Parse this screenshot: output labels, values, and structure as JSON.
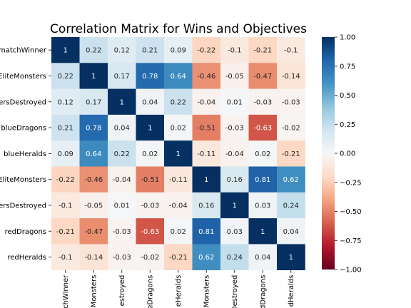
{
  "chart_data": {
    "type": "heatmap",
    "title": "Correlation Matrix for Wins and Objectives",
    "row_labels": [
      "matchWinner",
      "EliteMonsters",
      "ersDestroyed",
      "blueDragons",
      "blueHeralds",
      "EliteMonsters",
      "ersDestroyed",
      "redDragons",
      "redHeralds"
    ],
    "column_labels": [
      "chWinner",
      "Monsters",
      "estroyed",
      "eDragons",
      "eHeralds",
      "Monsters",
      "Destroyed",
      "dDragons",
      "dHeralds"
    ],
    "values": [
      [
        1,
        0.22,
        0.12,
        0.21,
        0.09,
        -0.22,
        -0.1,
        -0.21,
        -0.1
      ],
      [
        0.22,
        1,
        0.17,
        0.78,
        0.64,
        -0.46,
        -0.05,
        -0.47,
        -0.14
      ],
      [
        0.12,
        0.17,
        1,
        0.04,
        0.22,
        -0.04,
        0.01,
        -0.03,
        -0.03
      ],
      [
        0.21,
        0.78,
        0.04,
        1,
        0.02,
        -0.51,
        -0.03,
        -0.63,
        -0.02
      ],
      [
        0.09,
        0.64,
        0.22,
        0.02,
        1,
        -0.11,
        -0.04,
        0.02,
        -0.21
      ],
      [
        -0.22,
        -0.46,
        -0.04,
        -0.51,
        -0.11,
        1,
        0.16,
        0.81,
        0.62
      ],
      [
        -0.1,
        -0.05,
        0.01,
        -0.03,
        -0.04,
        0.16,
        1,
        0.03,
        0.24
      ],
      [
        -0.21,
        -0.47,
        -0.03,
        -0.63,
        0.02,
        0.81,
        0.03,
        1,
        0.04
      ],
      [
        -0.1,
        -0.14,
        -0.03,
        -0.02,
        -0.21,
        0.62,
        0.24,
        0.04,
        1
      ]
    ],
    "colormap": "RdBu",
    "vmin": -1,
    "vmax": 1,
    "colorbar_ticks": [
      "1.00",
      "0.75",
      "0.50",
      "0.25",
      "0.00",
      "−0.25",
      "−0.50",
      "−0.75",
      "−1.00"
    ],
    "colorbar_tick_values": [
      1,
      0.75,
      0.5,
      0.25,
      0,
      -0.25,
      -0.5,
      -0.75,
      -1
    ],
    "colors": {
      "rdbu": [
        "#67001f",
        "#b2182b",
        "#d6604d",
        "#f4a582",
        "#fddbc7",
        "#f7f7f7",
        "#d1e5f0",
        "#92c5de",
        "#4393c3",
        "#2166ac",
        "#053061"
      ]
    }
  }
}
